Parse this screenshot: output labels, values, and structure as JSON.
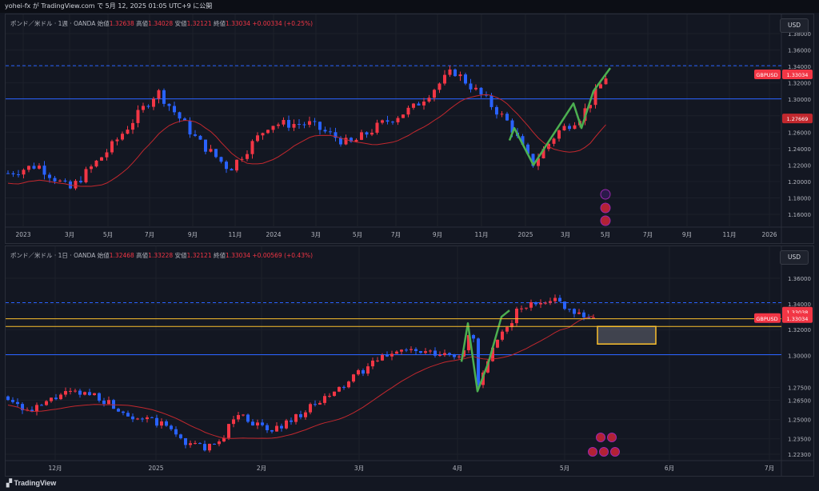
{
  "header": {
    "text": "yohei-fx が TradingView.com で 5月 12, 2025 01:05 UTC+9 に公開"
  },
  "footer": {
    "logo_text": "TradingView"
  },
  "colors": {
    "up": "#f23645",
    "down": "#2962ff",
    "ma": "#c2282e",
    "hline": "#2962ff",
    "swing": "#4caf50",
    "box": "#fbc02d"
  },
  "panes": [
    {
      "id": "weekly",
      "legend": {
        "title": "ポンド／米ドル · 1週 · OANDA",
        "open_label": "始値",
        "open": "1.32638",
        "high_label": "高値",
        "high": "1.34028",
        "low_label": "安値",
        "low": "1.32121",
        "close_label": "終値",
        "close": "1.33034",
        "change": "+0.00334 (+0.25%)"
      },
      "currency": "USD",
      "y_ticks": [
        "1.38000",
        "1.36000",
        "1.34000",
        "1.32000",
        "1.30000",
        "1.28000",
        "1.26000",
        "1.24000",
        "1.22000",
        "1.20000",
        "1.18000",
        "1.16000"
      ],
      "x_ticks": [
        "2023",
        "3月",
        "5月",
        "7月",
        "9月",
        "11月",
        "2024",
        "3月",
        "5月",
        "7月",
        "9月",
        "11月",
        "2025",
        "3月",
        "5月",
        "7月",
        "9月",
        "11月",
        "2026"
      ],
      "price_tags": [
        {
          "symbol": "GBPUSD",
          "price": "1.33034"
        },
        {
          "price": "1.27669"
        }
      ],
      "dashed_level": 1.341,
      "solid_level": 1.3005
    },
    {
      "id": "daily",
      "legend": {
        "title": "ポンド／米ドル · 1日 · OANDA",
        "open_label": "始値",
        "open": "1.32468",
        "high_label": "高値",
        "high": "1.33228",
        "low_label": "安値",
        "low": "1.32121",
        "close_label": "終値",
        "close": "1.33034",
        "change": "+0.00569 (+0.43%)"
      },
      "currency": "USD",
      "y_ticks": [
        "1.36000",
        "1.34000",
        "1.32000",
        "1.30000",
        "1.27500",
        "1.26500",
        "1.25000",
        "1.23500",
        "1.22300"
      ],
      "x_ticks": [
        "12月",
        "2025",
        "2月",
        "3月",
        "4月",
        "5月",
        "6月",
        "7月"
      ],
      "price_tags": [
        {
          "price": "1.33038"
        },
        {
          "symbol": "GBPUSD",
          "price": "1.33034"
        }
      ],
      "dashed_level": 1.341,
      "solid_level": 1.3005
    }
  ]
}
